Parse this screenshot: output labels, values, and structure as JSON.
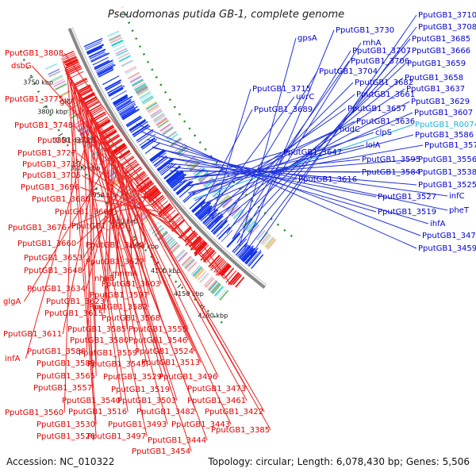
{
  "title": "Pseudomonas putida GB-1, complete genome",
  "footer": {
    "accession": "Accession: NC_010322",
    "stats": "Topology: circular; Length: 6,078,430 bp; Genes: 5,506"
  },
  "scale_labels": [
    "4200 kbp",
    "4150 kbp",
    "4100 kbp",
    "4050 kbp",
    "4000 kbp",
    "3950 kbp",
    "3900 kbp",
    "3850 kbp",
    "3800 kbp",
    "3750 kbp"
  ],
  "colors": {
    "forward_strand": "#ee1111",
    "reverse_strand": "#1133ee",
    "label_line_red": "#ee2222",
    "label_line_blue": "#2233dd",
    "cyan_label": "#22b0e0",
    "backbone": "#888888",
    "scale_dots": "#228822"
  },
  "left_labels": [
    "PputGB1_3808",
    "dsbG",
    "PputGB1_3775",
    "gltA",
    "PputGB1_3748",
    "PputGB1_3728",
    "PputGB1_3727",
    "PputGB1_3719",
    "PputGB1_3705",
    "PputGB1_3696",
    "PputGB1_3686",
    "PputGB1_3669",
    "PputGB1_3676",
    "PputGB1_3656",
    "PputGB1_3660",
    "PputGB1_3640",
    "PputGB1_3653",
    "PputGB1_3627",
    "PputGB1_3648",
    "nhaB",
    "mnmA",
    "PputGB1_3603",
    "PputGB1_3634",
    "PputGB1_3597",
    "glgA",
    "PputGB1_3623",
    "aat",
    "PputGB1_3582",
    "PputGB1_3615",
    "PputGB1_3568",
    "PputGB1_3611",
    "PputGB1_3585",
    "PputGB1_3555",
    "PputGB1_3580",
    "PputGB1_3546",
    "PputGB1_3588",
    "PputGB1_3559",
    "PputGB1_3524",
    "infA",
    "PputGB1_3583",
    "PputGB1_3545",
    "PputGB1_3513",
    "PputGB1_3565",
    "PputGB1_3529",
    "PputGB1_3496",
    "PputGB1_3557",
    "PputGB1_3519",
    "PputGB1_3473",
    "PputGB1_3540",
    "PputGB1_3503",
    "PputGB1_3461",
    "PputGB1_3560",
    "PputGB1_3516",
    "PputGB1_3482",
    "PputGB1_3422",
    "PputGB1_3530",
    "PputGB1_3493",
    "PputGB1_3443",
    "PputGB1_3526",
    "PputGB1_3497",
    "PputGB1_3444",
    "PputGB1_3385",
    "PputGB1_3454"
  ],
  "right_labels": [
    "PputGB1_3710",
    "PputGB1_3730",
    "PputGB1_3708",
    "gpsA",
    "rnhA",
    "PputGB1_3685",
    "PputGB1_3707",
    "PputGB1_3666",
    "PputGB1_3706",
    "PputGB1_3659",
    "PputGB1_3704",
    "PputGB1_3658",
    "PputGB1_3682",
    "PputGB1_3715",
    "PputGB1_3637",
    "uvrC",
    "PputGB1_3661",
    "PputGB1_3629",
    "PputGB1_3689",
    "PputGB1_3657",
    "PputGB1_3607",
    "PputGB1_3636",
    "PputGB1_R0074",
    "nudC",
    "clpS",
    "PputGB1_3586",
    "PputGB1_3647",
    "lolA",
    "PputGB1_3571",
    "PputGB1_3595",
    "PputGB1_3556",
    "PputGB1_3584",
    "PputGB1_3538",
    "PputGB1_3616",
    "PputGB1_3525",
    "PputGB1_3527",
    "infC",
    "PputGB1_3519",
    "pheT",
    "ihfA",
    "PputGB1_3474",
    "PputGB1_3459"
  ]
}
